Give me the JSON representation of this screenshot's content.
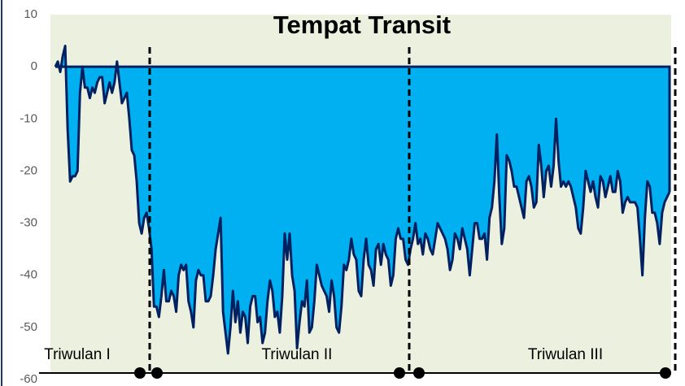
{
  "chart_data": {
    "type": "area",
    "title": "Tempat Transit",
    "values": [
      0,
      1,
      -1,
      2,
      4,
      -12,
      -22,
      -21,
      -21,
      -20,
      -5,
      0,
      -4,
      -4,
      -6,
      -4,
      -5,
      -3,
      -2,
      -2,
      -7,
      -5,
      -3,
      -5,
      -3,
      1,
      -3,
      -7,
      -6,
      -5,
      -10,
      -16,
      -17,
      -22,
      -30,
      -32,
      -29,
      -28,
      -31,
      -35,
      -46,
      -46,
      -48,
      -44,
      -39,
      -45,
      -45,
      -43,
      -44,
      -47,
      -40,
      -38,
      -39,
      -38,
      -45,
      -47,
      -50,
      -41,
      -39,
      -40,
      -40,
      -45,
      -45,
      -44,
      -40,
      -35,
      -32,
      -29,
      -47,
      -51,
      -55,
      -50,
      -43,
      -49,
      -45,
      -51,
      -47,
      -48,
      -53,
      -46,
      -44,
      -44,
      -49,
      -48,
      -53,
      -51,
      -45,
      -41,
      -43,
      -48,
      -47,
      -51,
      -44,
      -32,
      -37,
      -32,
      -40,
      -43,
      -54,
      -49,
      -45,
      -46,
      -41,
      -51,
      -50,
      -45,
      -38,
      -40,
      -42,
      -43,
      -44,
      -47,
      -41,
      -44,
      -50,
      -51,
      -46,
      -38,
      -39,
      -37,
      -33,
      -36,
      -37,
      -43,
      -44,
      -37,
      -33,
      -38,
      -39,
      -42,
      -35,
      -34,
      -38,
      -34,
      -36,
      -37,
      -42,
      -40,
      -33,
      -31,
      -33,
      -33,
      -37,
      -38,
      -35,
      -33,
      -30,
      -34,
      -33,
      -36,
      -32,
      -33,
      -35,
      -36,
      -33,
      -30,
      -31,
      -32,
      -33,
      -35,
      -39,
      -37,
      -32,
      -33,
      -35,
      -31,
      -33,
      -35,
      -40,
      -35,
      -30,
      -30,
      -33,
      -33,
      -32,
      -37,
      -29,
      -27,
      -22,
      -13,
      -25,
      -34,
      -31,
      -17,
      -18,
      -20,
      -23,
      -23,
      -25,
      -27,
      -29,
      -22,
      -21,
      -23,
      -27,
      -26,
      -15,
      -19,
      -25,
      -20,
      -19,
      -23,
      -19,
      -10,
      -18,
      -23,
      -22,
      -23,
      -22,
      -23,
      -25,
      -27,
      -31,
      -32,
      -27,
      -20,
      -22,
      -24,
      -22,
      -25,
      -27,
      -21,
      -22,
      -25,
      -23,
      -21,
      -24,
      -24,
      -20,
      -22,
      -28,
      -26,
      -25,
      -26,
      -26,
      -26,
      -27,
      -33,
      -40,
      -29,
      -22,
      -23,
      -28,
      -28,
      -30,
      -34,
      -28,
      -26,
      -25,
      -24
    ],
    "color": "#00b0f0",
    "line_color": "#002060",
    "background": "#ebf1de",
    "ylim": [
      -60,
      10
    ],
    "yticks": [
      -60,
      -50,
      -40,
      -30,
      -20,
      -10,
      0,
      10
    ],
    "annotations": [
      "Triwulan I",
      "Triwulan II",
      "Triwulan III"
    ]
  }
}
